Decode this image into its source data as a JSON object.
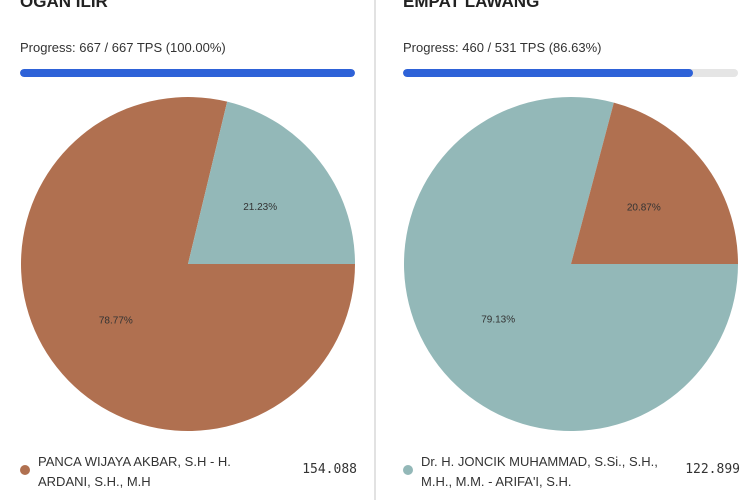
{
  "chart_data": [
    {
      "type": "pie",
      "title": "OGAN ILIR",
      "progress_label": "Progress: 667 / 667 TPS (100.00%)",
      "progress": {
        "done": 667,
        "total": 667
      },
      "categories": [
        "PANCA WIJAYA AKBAR, S.H - H. ARDANI, S.H., M.H",
        null
      ],
      "values": [
        78.77,
        21.23
      ],
      "value_labels": [
        "78.77%",
        "21.23%"
      ],
      "colors": [
        "#b07050",
        "#93b8b8"
      ],
      "counts": [
        "154.088",
        null
      ]
    },
    {
      "type": "pie",
      "title": "EMPAT LAWANG",
      "progress_label": "Progress: 460 / 531 TPS (86.63%)",
      "progress": {
        "done": 460,
        "total": 531
      },
      "categories": [
        "Dr. H. JONCIK MUHAMMAD, S.Si., S.H., M.H., M.M. - ARIFA'I, S.H.",
        null
      ],
      "values": [
        79.13,
        20.87
      ],
      "value_labels": [
        "79.13%",
        "20.87%"
      ],
      "colors": [
        "#93b8b8",
        "#b07050"
      ],
      "counts": [
        "122.899",
        null
      ]
    }
  ]
}
